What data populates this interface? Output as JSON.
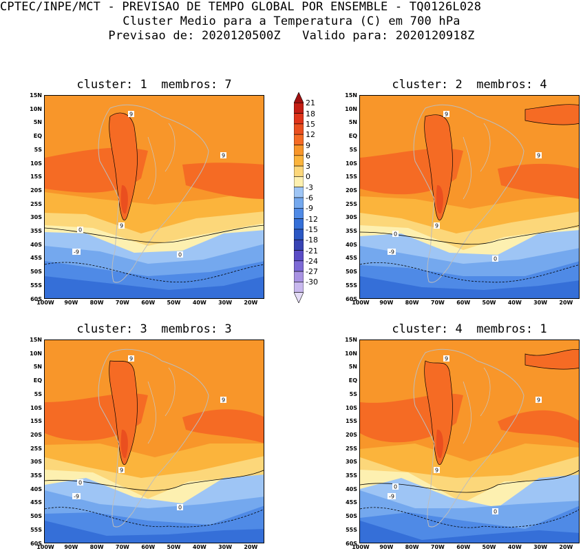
{
  "header": {
    "line1": "CPTEC/INPE/MCT - PREVISAO DE TEMPO GLOBAL POR ENSEMBLE - TQ0126L028",
    "line2": "Cluster Medio para a Temperatura (C) em 700 hPa",
    "line3": "Previsao de: 2020120500Z   Valido para: 2020120918Z"
  },
  "panels": [
    {
      "title": "cluster: 1  membros: 7"
    },
    {
      "title": "cluster: 2  membros: 4"
    },
    {
      "title": "cluster: 3  membros: 3"
    },
    {
      "title": "cluster: 4  membros: 1"
    }
  ],
  "lat_labels": [
    "15N",
    "10N",
    "5N",
    "EQ",
    "5S",
    "10S",
    "15S",
    "20S",
    "25S",
    "30S",
    "35S",
    "40S",
    "45S",
    "50S",
    "55S",
    "60S"
  ],
  "lon_labels": [
    "100W",
    "90W",
    "80W",
    "70W",
    "60W",
    "50W",
    "40W",
    "30W",
    "20W"
  ],
  "colorbar": {
    "levels": [
      "21",
      "18",
      "15",
      "12",
      "9",
      "6",
      "3",
      "0",
      "-3",
      "-6",
      "-9",
      "-12",
      "-15",
      "-18",
      "-21",
      "-24",
      "-27",
      "-30"
    ],
    "colors": [
      "#a01010",
      "#c41e14",
      "#e0341a",
      "#ea4f1f",
      "#f56b24",
      "#f8962a",
      "#fbb43c",
      "#fcd77a",
      "#fdf0b0",
      "#9ec5f5",
      "#74a8ee",
      "#4f8ae6",
      "#356fd8",
      "#2b57c4",
      "#3844b4",
      "#5a4cc6",
      "#7d6ad6",
      "#a892e2",
      "#c8b8ee",
      "#e4dcf6"
    ]
  },
  "contour_labels": [
    "9",
    "0",
    "-9"
  ]
}
